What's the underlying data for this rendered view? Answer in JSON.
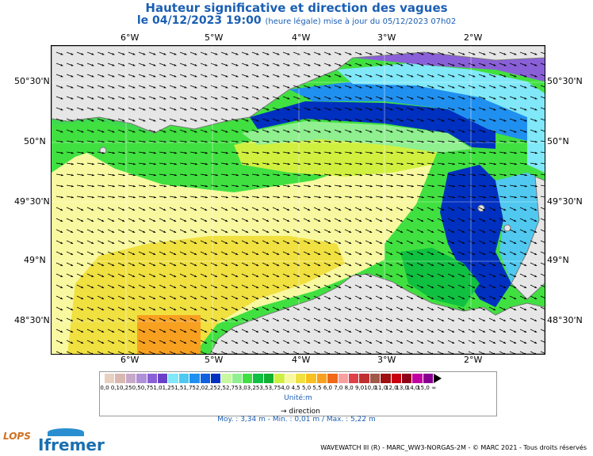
{
  "header": {
    "title": "Hauteur significative et direction des vagues",
    "date_main": "le 04/12/2023 19:00",
    "date_note": "(heure légale) mise à jour du 05/12/2023 07h02"
  },
  "map": {
    "lon_labels": [
      "6°W",
      "5°W",
      "4°W",
      "3°W",
      "2°W"
    ],
    "lat_labels": [
      "50°30'N",
      "50°N",
      "49°30'N",
      "49°N",
      "48°30'N"
    ],
    "lon_range": [
      -6.9,
      -1.2
    ],
    "lat_range": [
      48.3,
      50.9
    ],
    "land_color": "#e6e6e6"
  },
  "legend": {
    "values": [
      "0,0",
      "0,1",
      "0,25",
      "0,5",
      "0,75",
      "1,0",
      "1,25",
      "1,5",
      "1,75",
      "2,0",
      "2,25",
      "2,5",
      "2,75",
      "3,0",
      "3,25",
      "3,5",
      "3,75",
      "4,0",
      "4,5",
      "5,0",
      "5,5",
      "6,0",
      "7,0",
      "8,0",
      "9,0",
      "10,0",
      "11,0",
      "12,0",
      "13,0",
      "14,0",
      "15,0",
      "∞"
    ],
    "colors": [
      "#e8d0c0",
      "#d8b8b0",
      "#c8a8c8",
      "#b090d8",
      "#8a60d8",
      "#6a40c8",
      "#80e8f8",
      "#50c8f0",
      "#2090f0",
      "#1060e0",
      "#0030c0",
      "#c8f8a0",
      "#90f090",
      "#40e040",
      "#10c040",
      "#10b030",
      "#d0f040",
      "#f8f8a0",
      "#f0e040",
      "#f8c020",
      "#f8a020",
      "#f06818",
      "#f8a0a0",
      "#e04048",
      "#c03030",
      "#a05848",
      "#a01010",
      "#c80010",
      "#900018",
      "#c000a0",
      "#880090"
    ],
    "unit": "Unité:m",
    "direction_label": "direction"
  },
  "stats": "Moy. : 3,34 m   -   Min. : 0,01 m / Max. : 5,22 m",
  "credit": "WAVEWATCH III (R) - MARC_WW3-NORGAS-2M - © MARC 2021 - Tous droits réservés",
  "logos": {
    "left": "LOPS",
    "right": "Ifremer"
  }
}
